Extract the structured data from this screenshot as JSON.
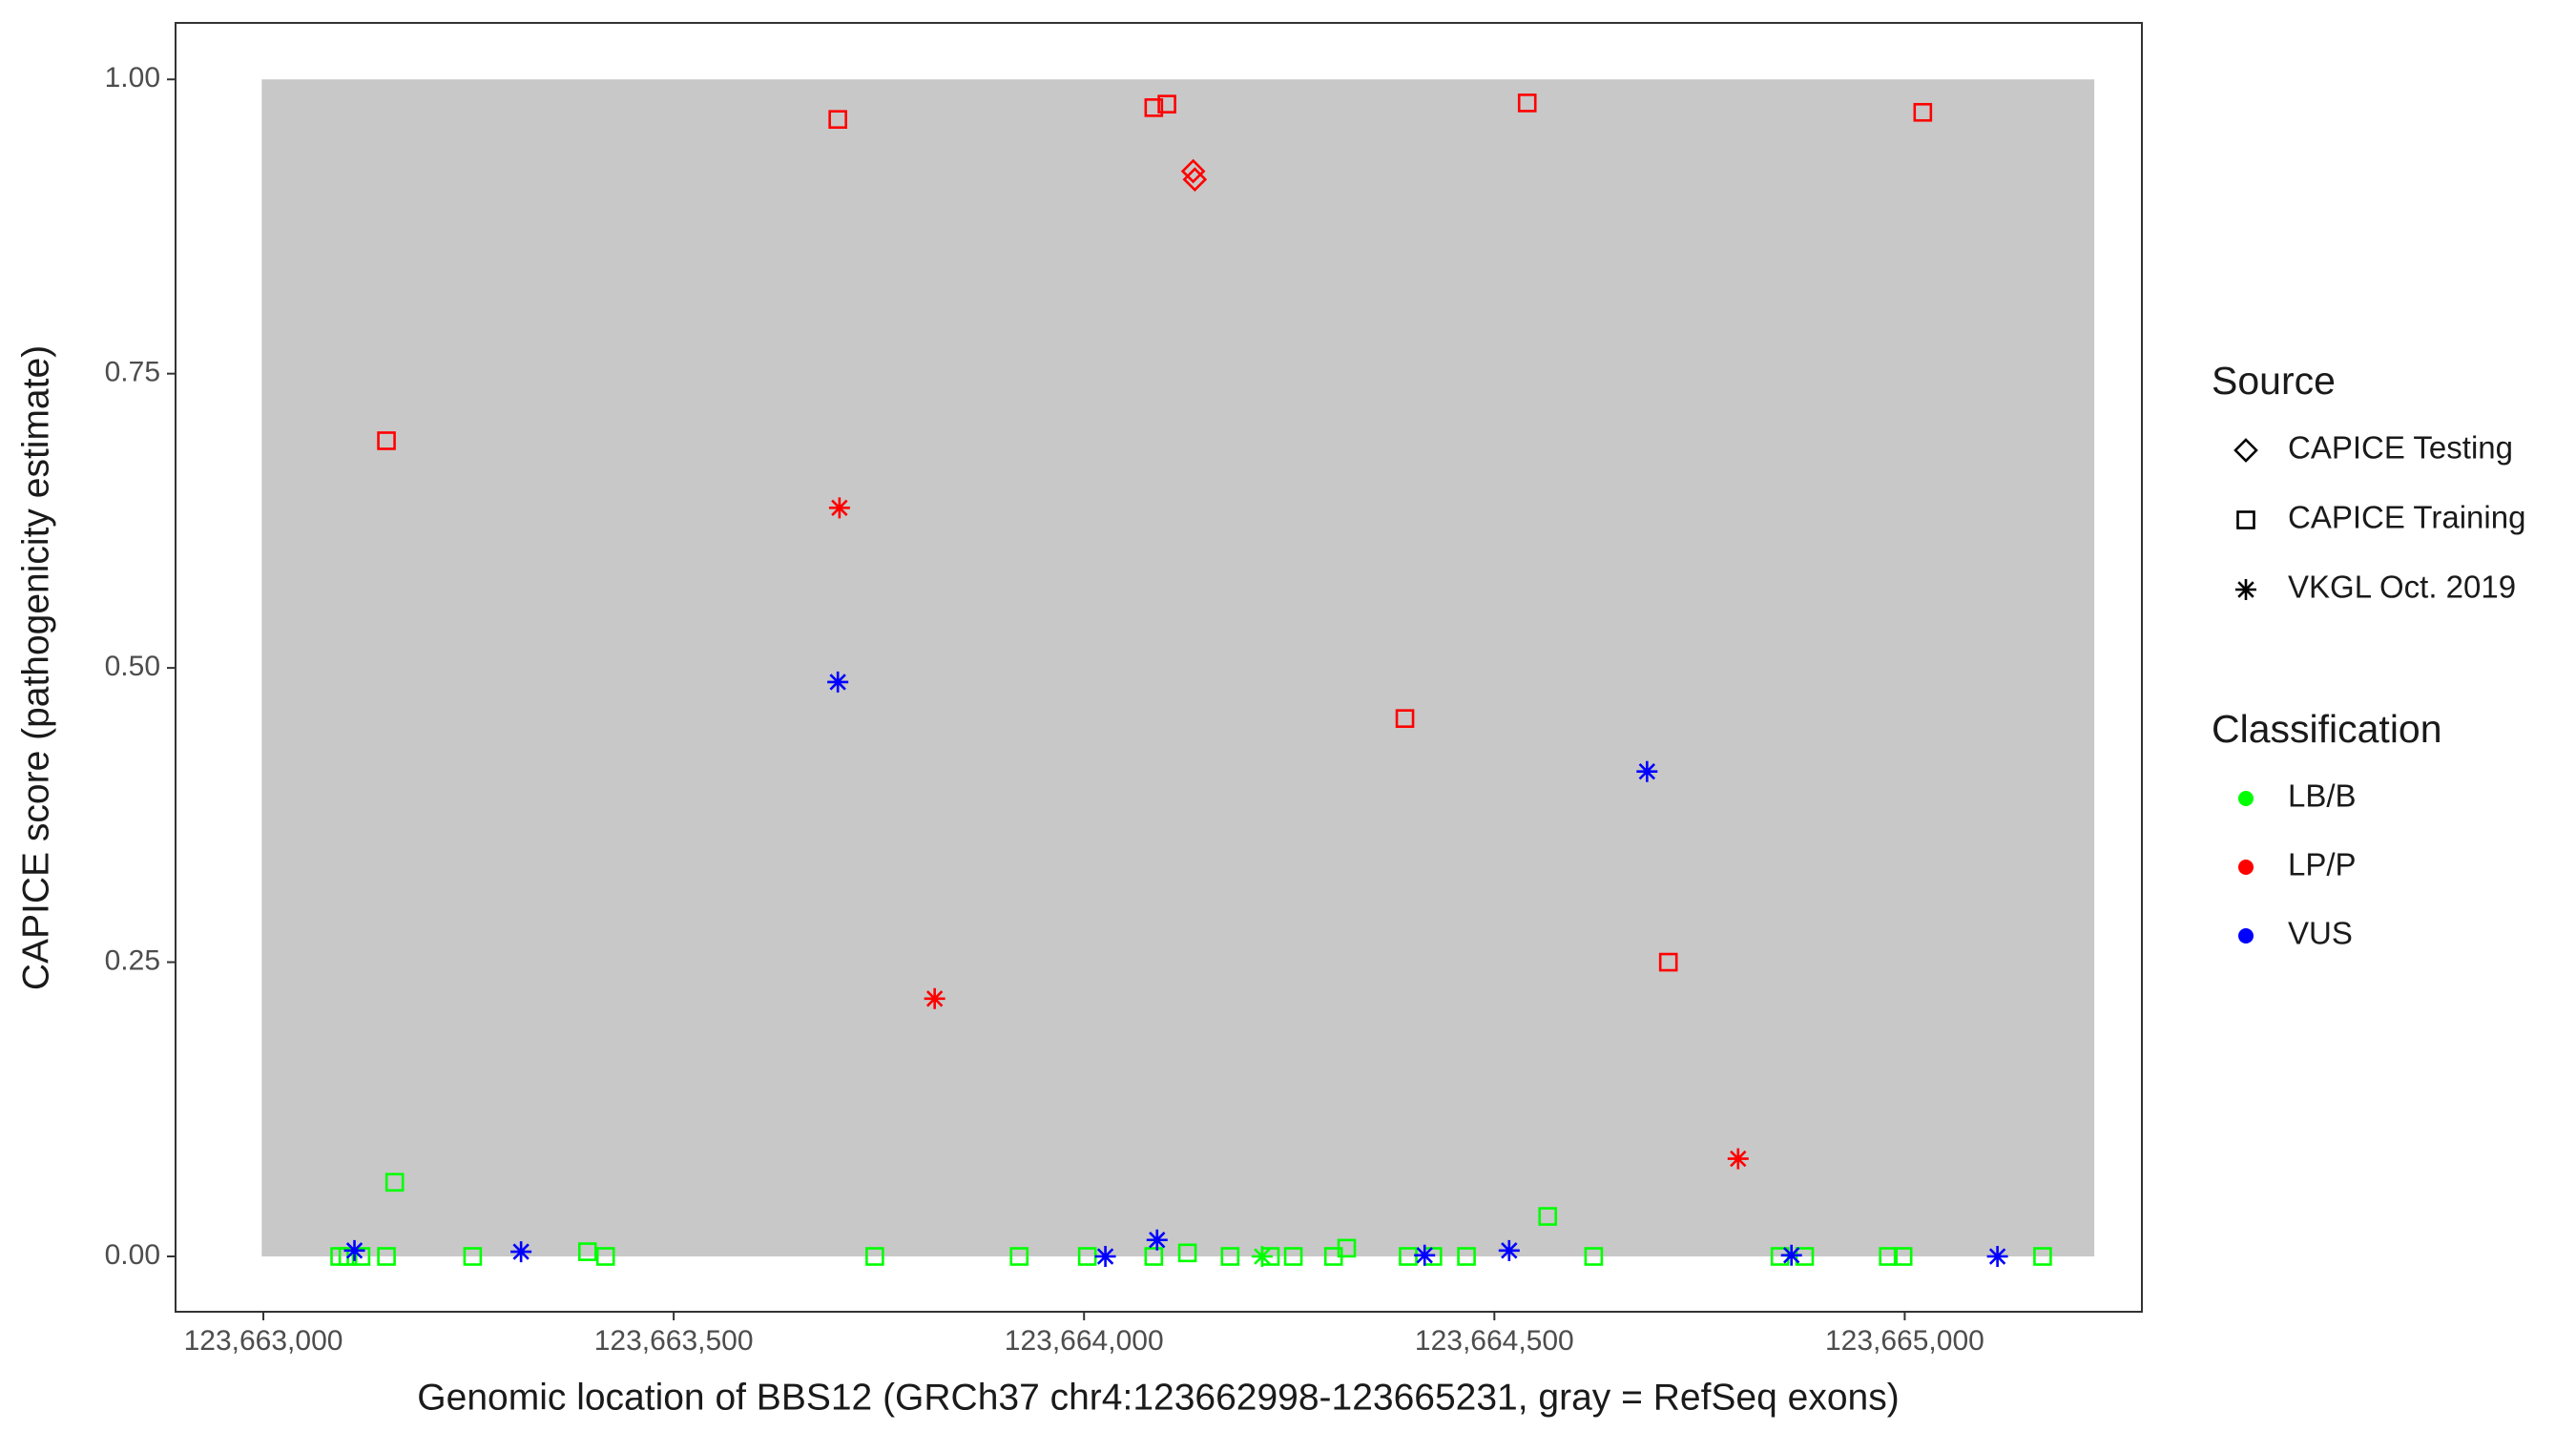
{
  "chart_data": {
    "type": "scatter",
    "xlabel": "Genomic location of BBS12 (GRCh37 chr4:123662998-123665231, gray = RefSeq exons)",
    "ylabel": "CAPICE score (pathogenicity estimate)",
    "xlim": [
      123662893,
      123665289
    ],
    "ylim": [
      -0.047,
      1.048
    ],
    "xticks": [
      {
        "value": 123663000,
        "label": "123,663,000"
      },
      {
        "value": 123663500,
        "label": "123,663,500"
      },
      {
        "value": 123664000,
        "label": "123,664,000"
      },
      {
        "value": 123664500,
        "label": "123,664,500"
      },
      {
        "value": 123665000,
        "label": "123,665,000"
      }
    ],
    "yticks": [
      {
        "value": 0,
        "label": "0.00"
      },
      {
        "value": 0.25,
        "label": "0.25"
      },
      {
        "value": 0.5,
        "label": "0.50"
      },
      {
        "value": 0.75,
        "label": "0.75"
      },
      {
        "value": 1,
        "label": "1.00"
      }
    ],
    "shaded_region": {
      "x": [
        123662998,
        123665231
      ],
      "y": [
        0,
        1
      ],
      "color": "#c8c8c8"
    },
    "legend": {
      "source": {
        "title": "Source",
        "items": [
          {
            "name": "CAPICE Testing",
            "shape": "diamond"
          },
          {
            "name": "CAPICE Training",
            "shape": "square"
          },
          {
            "name": "VKGL Oct. 2019",
            "shape": "star"
          }
        ]
      },
      "classification": {
        "title": "Classification",
        "items": [
          {
            "name": "LB/B",
            "color": "#00ff00"
          },
          {
            "name": "LP/P",
            "color": "#ff0000"
          },
          {
            "name": "VUS",
            "color": "#0000ff"
          }
        ]
      }
    },
    "series": [
      {
        "source": "CAPICE Training",
        "classification": "LB/B",
        "x": [
          123663160,
          123664565,
          123663093,
          123663103,
          123663119,
          123663150,
          123663255,
          123663395,
          123663417,
          123663745,
          123663921,
          123664004,
          123664085,
          123664126,
          123664178,
          123664227,
          123664255,
          123664304,
          123664320,
          123664395,
          123664425,
          123664466,
          123664621,
          123664848,
          123664878,
          123664980,
          123664998,
          123665168
        ],
        "y": [
          0.063,
          0.034,
          0,
          0,
          0,
          0,
          0,
          0.004,
          0,
          0,
          0,
          0,
          0,
          0.003,
          0,
          0,
          0,
          0,
          0.007,
          0,
          0,
          0,
          0,
          0,
          0,
          0,
          0,
          0
        ]
      },
      {
        "source": "VKGL Oct. 2019",
        "classification": "LB/B",
        "x": [
          123664217
        ],
        "y": [
          0
        ]
      },
      {
        "source": "CAPICE Training",
        "classification": "LP/P",
        "x": [
          123663150,
          123663700,
          123664085,
          123664101,
          123664540,
          123665022,
          123664391,
          123664712
        ],
        "y": [
          0.693,
          0.966,
          0.976,
          0.979,
          0.98,
          0.972,
          0.457,
          0.25
        ]
      },
      {
        "source": "CAPICE Testing",
        "classification": "LP/P",
        "x": [
          123664133,
          123664135
        ],
        "y": [
          0.922,
          0.915
        ]
      },
      {
        "source": "VKGL Oct. 2019",
        "classification": "LP/P",
        "x": [
          123663702,
          123663818,
          123664797
        ],
        "y": [
          0.636,
          0.219,
          0.083
        ]
      },
      {
        "source": "VKGL Oct. 2019",
        "classification": "VUS",
        "x": [
          123663700,
          123664686,
          123663111,
          123663314,
          123664026,
          123664089,
          123664415,
          123664518,
          123664862,
          123665113
        ],
        "y": [
          0.488,
          0.412,
          0.005,
          0.004,
          0,
          0.014,
          0.001,
          0.005,
          0.001,
          0
        ]
      }
    ]
  }
}
